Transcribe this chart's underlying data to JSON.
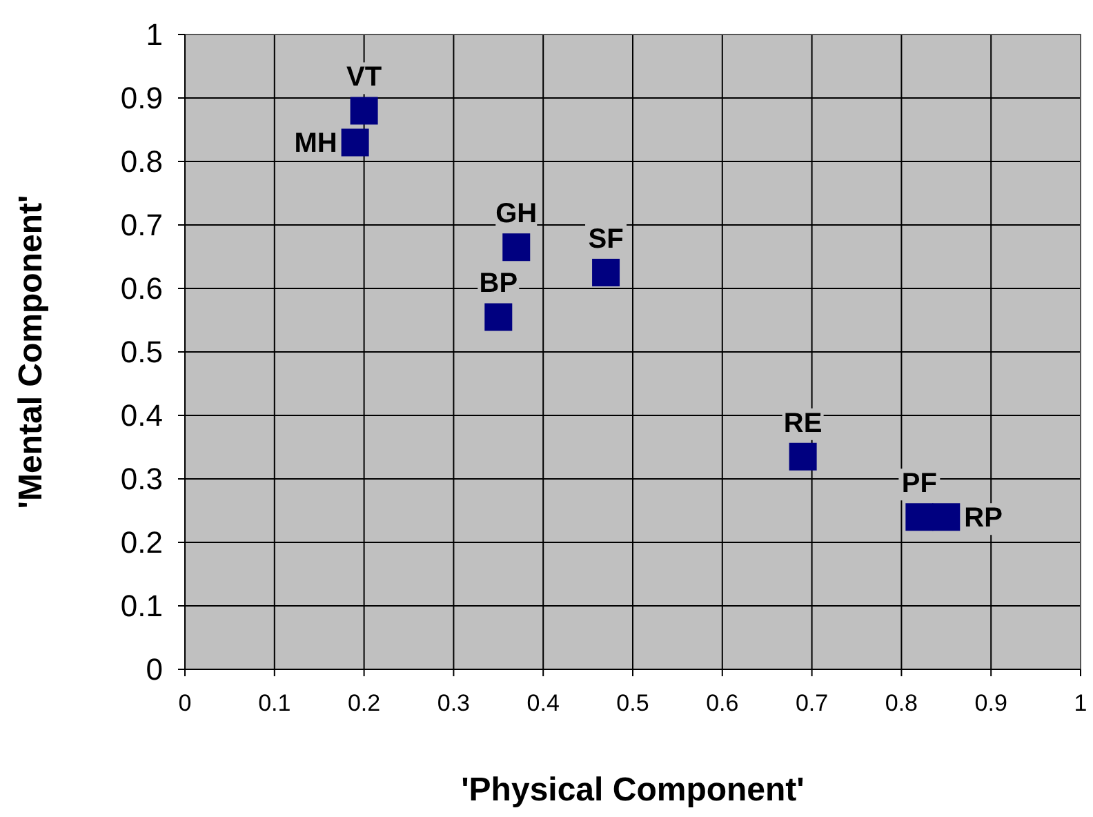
{
  "chart_data": {
    "type": "scatter",
    "xlabel": "'Physical Component'",
    "ylabel": "'Mental Component'",
    "xlim": [
      0,
      1
    ],
    "ylim": [
      0,
      1
    ],
    "xticks": [
      0,
      0.1,
      0.2,
      0.3,
      0.4,
      0.5,
      0.6,
      0.7,
      0.8,
      0.9,
      1
    ],
    "yticks": [
      0,
      0.1,
      0.2,
      0.3,
      0.4,
      0.5,
      0.6,
      0.7,
      0.8,
      0.9,
      1
    ],
    "grid": true,
    "marker": "square",
    "series": [
      {
        "color": "#000080",
        "x": [
          0.2,
          0.19,
          0.37,
          0.47,
          0.35,
          0.69,
          0.82,
          0.85
        ],
        "values": [
          0.88,
          0.83,
          0.665,
          0.625,
          0.555,
          0.335,
          0.24,
          0.24
        ]
      }
    ],
    "annotations": [
      {
        "text": "VT",
        "x": 0.2,
        "y": 0.88
      },
      {
        "text": "MH",
        "x": 0.19,
        "y": 0.83
      },
      {
        "text": "GH",
        "x": 0.37,
        "y": 0.665
      },
      {
        "text": "SF",
        "x": 0.47,
        "y": 0.625
      },
      {
        "text": "BP",
        "x": 0.35,
        "y": 0.555
      },
      {
        "text": "RE",
        "x": 0.69,
        "y": 0.335
      },
      {
        "text": "PF",
        "x": 0.82,
        "y": 0.24
      },
      {
        "text": "RP",
        "x": 0.85,
        "y": 0.24
      }
    ]
  }
}
